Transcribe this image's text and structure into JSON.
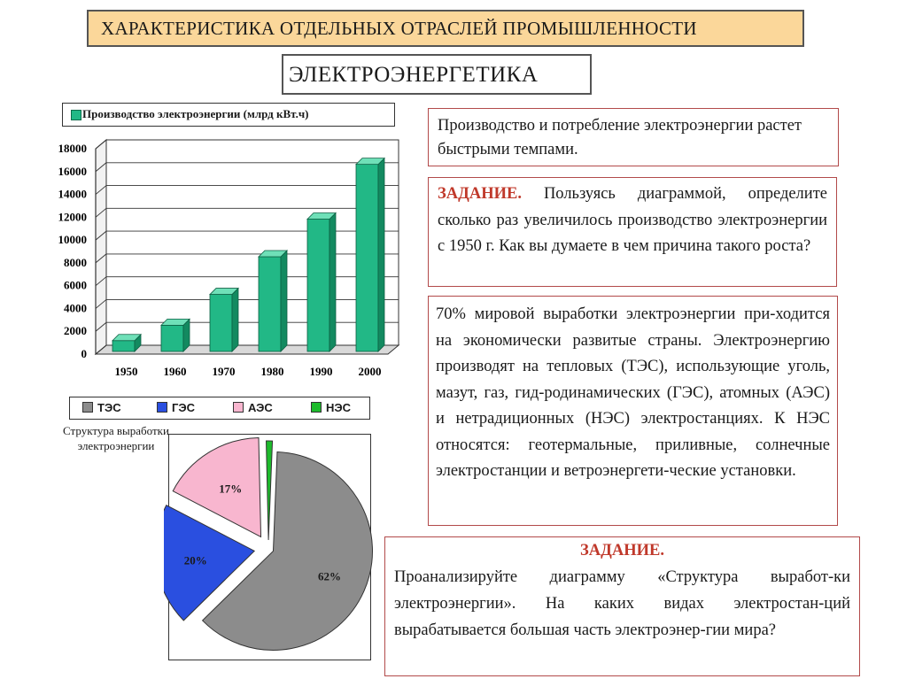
{
  "header": {
    "title": "ХАРАКТЕРИСТИКА ОТДЕЛЬНЫХ ОТРАСЛЕЙ ПРОМЫШЛЕННОСТИ",
    "subtitle": "ЭЛЕКТРОЭНЕРГЕТИКА"
  },
  "colors": {
    "bar": "#22b886",
    "tes": "#8c8c8c",
    "ges": "#2a4fe0",
    "aes": "#f8b6cf",
    "nes": "#1dbb2c",
    "frame": "#b24a4a"
  },
  "bar_chart": {
    "legend": "Производство электроэнергии (млрд кВт.ч)"
  },
  "pie_chart": {
    "caption": "Структура выработки электроэнергии"
  },
  "chart_data": [
    {
      "type": "bar",
      "categories": [
        "1950",
        "1960",
        "1970",
        "1980",
        "1990",
        "2000"
      ],
      "series": [
        {
          "name": "Производство электроэнергии (млрд кВт.ч)",
          "values": [
            950,
            2300,
            5000,
            8300,
            11600,
            16400
          ]
        }
      ],
      "ylim": [
        0,
        18000
      ],
      "yticks": [
        "0",
        "2000",
        "4000",
        "6000",
        "8000",
        "10000",
        "12000",
        "14000",
        "16000",
        "18000"
      ],
      "grid": true,
      "legend_position": "top"
    },
    {
      "type": "pie",
      "labels": [
        "ТЭС",
        "ГЭС",
        "АЭС",
        "НЭС"
      ],
      "values": [
        62,
        20,
        17,
        1
      ],
      "data_labels": [
        "62%",
        "20%",
        "17%",
        "1%"
      ],
      "legend_position": "top"
    }
  ],
  "text_boxes": {
    "box1": {
      "text": "Производство и потребление электроэнергии растет быстрыми темпами."
    },
    "box2": {
      "label": "ЗАДАНИЕ.",
      "text": " Пользуясь диаграммой, определите сколько раз увеличилось производство электроэнергии с 1950 г. Как вы думаете в чем причина такого роста?"
    },
    "box3": {
      "text": "70% мировой выработки электроэнергии при-ходится на экономически развитые страны. Электроэнергию производят на тепловых (ТЭС), использующие уголь, мазут, газ, гид-родинамических (ГЭС), атомных (АЭС) и нетрадиционных (НЭС) электростанциях. К НЭС относятся: геотермальные, приливные, солнечные электростанции и ветроэнергети-ческие установки."
    },
    "box4": {
      "label": "ЗАДАНИЕ.",
      "text": "Проанализируйте диаграмму «Структура выработ-ки электроэнергии». На каких видах электростан-ций вырабатывается большая часть электроэнер-гии мира?"
    }
  }
}
